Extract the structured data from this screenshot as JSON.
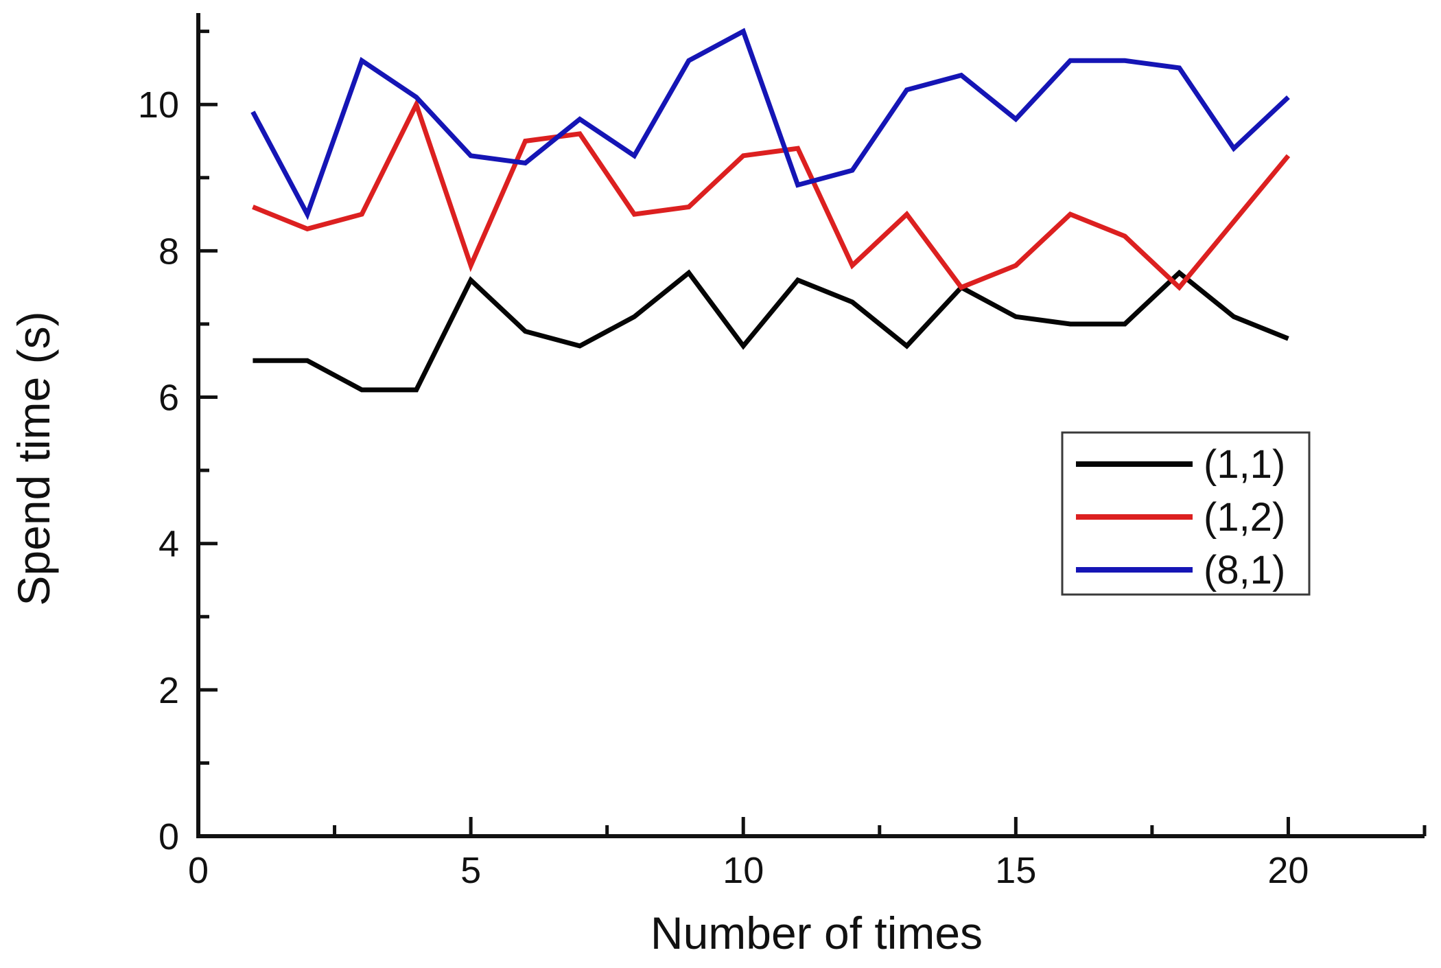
{
  "chart_data": {
    "type": "line",
    "title": "",
    "xlabel": "Number of times",
    "ylabel": "Spend time (s)",
    "x": [
      1,
      2,
      3,
      4,
      5,
      6,
      7,
      8,
      9,
      10,
      11,
      12,
      13,
      14,
      15,
      16,
      17,
      18,
      19,
      20
    ],
    "series": [
      {
        "name": "(1,1)",
        "color": "#050505",
        "values": [
          6.5,
          6.5,
          6.1,
          6.1,
          7.6,
          6.9,
          6.7,
          7.1,
          7.7,
          6.7,
          7.6,
          7.3,
          6.7,
          7.5,
          7.1,
          7.0,
          7.0,
          7.7,
          7.1,
          6.8
        ]
      },
      {
        "name": "(1,2)",
        "color": "#dc2020",
        "values": [
          8.6,
          8.3,
          8.5,
          10.0,
          7.8,
          9.5,
          9.6,
          8.5,
          8.6,
          9.3,
          9.4,
          7.8,
          8.5,
          7.5,
          7.8,
          8.5,
          8.2,
          7.5,
          8.4,
          9.3
        ]
      },
      {
        "name": "(8,1)",
        "color": "#1515b5",
        "values": [
          9.9,
          8.5,
          10.6,
          10.1,
          9.3,
          9.2,
          9.8,
          9.3,
          10.6,
          11.0,
          8.9,
          9.1,
          10.2,
          10.4,
          9.8,
          10.6,
          10.6,
          10.5,
          9.4,
          10.1
        ]
      }
    ],
    "xlim": [
      0,
      22.5
    ],
    "ylim": [
      0,
      11.25
    ],
    "x_major_ticks": [
      0,
      5,
      10,
      15,
      20
    ],
    "x_minor_ticks": [
      2.5,
      7.5,
      12.5,
      17.5,
      22.5
    ],
    "y_major_ticks": [
      0,
      2,
      4,
      6,
      8,
      10
    ],
    "y_minor_ticks": [
      1,
      3,
      5,
      7,
      9,
      11
    ],
    "x_tick_labels": [
      "0",
      "5",
      "10",
      "15",
      "20"
    ],
    "y_tick_labels": [
      "0",
      "2",
      "4",
      "6",
      "8",
      "10"
    ],
    "grid": false,
    "legend": {
      "position": "middle-right",
      "entries": [
        "(1,1)",
        "(1,2)",
        "(8,1)"
      ]
    }
  },
  "colors": {
    "axis": "#111111",
    "background": "#ffffff",
    "legend_border": "#3a3a3a"
  }
}
